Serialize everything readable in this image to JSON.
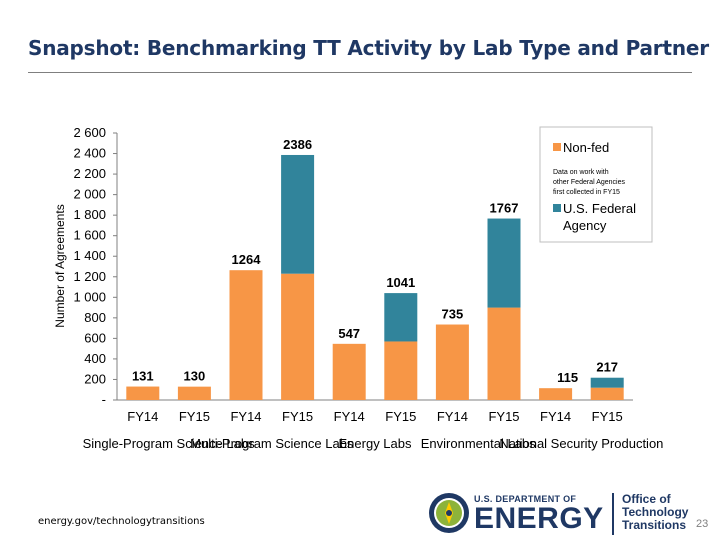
{
  "page": {
    "title": "Snapshot: Benchmarking TT Activity by Lab Type and Partner",
    "footer_url": "energy.gov/technologytransitions",
    "page_number": "23"
  },
  "logo": {
    "dept_line": "U.S. DEPARTMENT OF",
    "energy_word": "ENERGY",
    "office_lines": [
      "Office of",
      "Technology",
      "Transitions"
    ]
  },
  "chart_data": {
    "type": "bar",
    "stacked": true,
    "ylabel": "Number of Agreements",
    "ylim": [
      0,
      2600
    ],
    "yticks": [
      0,
      200,
      400,
      600,
      800,
      1000,
      1200,
      1400,
      1600,
      1800,
      2000,
      2200,
      2400,
      2600
    ],
    "ytick_labels": [
      "-",
      "200",
      "400",
      "600",
      "800",
      "1 000",
      "1 200",
      "1 400",
      "1 600",
      "1 800",
      "2 000",
      "2 200",
      "2 400",
      "2 600"
    ],
    "categories": [
      "FY14",
      "FY15",
      "FY14",
      "FY15",
      "FY14",
      "FY15",
      "FY14",
      "FY15",
      "FY14",
      "FY15"
    ],
    "groups": [
      {
        "label": "Single-Program Science Labs",
        "indices": [
          0,
          1
        ]
      },
      {
        "label": "Multi-Program Science Labs",
        "indices": [
          2,
          3
        ]
      },
      {
        "label": "Energy Labs",
        "indices": [
          4,
          5
        ]
      },
      {
        "label": "Environmental Labs",
        "indices": [
          6,
          7
        ]
      },
      {
        "label": "National Security Production",
        "indices": [
          8,
          9
        ]
      }
    ],
    "series": [
      {
        "name": "Non-fed",
        "color": "#f79646",
        "values": [
          131,
          130,
          1264,
          1230,
          547,
          570,
          735,
          900,
          115,
          120
        ]
      },
      {
        "name": "U.S. Federal Agency",
        "color": "#31849b",
        "values": [
          0,
          0,
          0,
          1156,
          0,
          471,
          0,
          867,
          0,
          97
        ]
      }
    ],
    "totals": [
      131,
      130,
      1264,
      2386,
      547,
      1041,
      735,
      1767,
      115,
      217
    ],
    "total_labels": [
      "131",
      "130",
      "1264",
      "2386",
      "547",
      "1041",
      "735",
      "1767",
      "115",
      "217"
    ],
    "legend": {
      "position": "right",
      "note": "Data on work with other Federal Agencies first collected in FY15"
    },
    "grid": false
  }
}
